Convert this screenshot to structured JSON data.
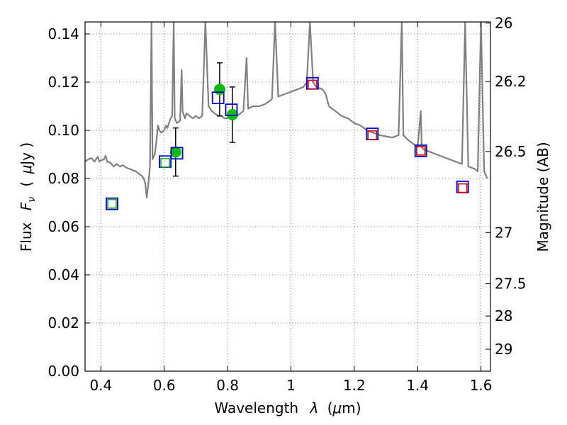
{
  "chart_data": {
    "type": "line",
    "title": "",
    "xlabel": "Wavelength",
    "xlabel_symbol": "λ",
    "xlabel_unit_open": "(",
    "xlabel_unit_mu": "μ",
    "xlabel_unit_rest": "m)",
    "ylabel": "Flux",
    "ylabel_symbol": "F",
    "ylabel_subscript": "ν",
    "ylabel_unit_open": "(",
    "ylabel_unit_mu": "μ",
    "ylabel_unit_rest": "Jy )",
    "y2label": "Magnitude (AB)",
    "xlim": [
      0.35,
      1.63
    ],
    "ylim": [
      0.0,
      0.145
    ],
    "grid": true,
    "x_ticks": [
      {
        "value": 0.4,
        "label": "0.4"
      },
      {
        "value": 0.6,
        "label": "0.6"
      },
      {
        "value": 0.8,
        "label": "0.8"
      },
      {
        "value": 1.0,
        "label": "1"
      },
      {
        "value": 1.2,
        "label": "1.2"
      },
      {
        "value": 1.4,
        "label": "1.4"
      },
      {
        "value": 1.6,
        "label": "1.6"
      }
    ],
    "y_ticks": [
      {
        "value": 0.0,
        "label": "0.00"
      },
      {
        "value": 0.02,
        "label": "0.02"
      },
      {
        "value": 0.04,
        "label": "0.04"
      },
      {
        "value": 0.06,
        "label": "0.06"
      },
      {
        "value": 0.08,
        "label": "0.08"
      },
      {
        "value": 0.1,
        "label": "0.10"
      },
      {
        "value": 0.12,
        "label": "0.12"
      },
      {
        "value": 0.14,
        "label": "0.14"
      }
    ],
    "y2_ticks": [
      {
        "mag": 26,
        "label": "26"
      },
      {
        "mag": 26.2,
        "label": "26.2"
      },
      {
        "mag": 26.5,
        "label": "26.5"
      },
      {
        "mag": 27,
        "label": "27"
      },
      {
        "mag": 27.5,
        "label": "27.5"
      },
      {
        "mag": 28,
        "label": "28"
      },
      {
        "mag": 29,
        "label": "29"
      }
    ],
    "colors": {
      "spectrum": "#808080",
      "observed_fill": "#11bb11",
      "error_bar": "#000000",
      "box_blue": "#0000cc",
      "box_green": "#22aa22",
      "box_red": "#dd0000",
      "grid": "#555555"
    },
    "series": [
      {
        "name": "model spectrum",
        "kind": "line",
        "points": [
          [
            0.35,
            0.087
          ],
          [
            0.36,
            0.088
          ],
          [
            0.37,
            0.0885
          ],
          [
            0.38,
            0.087
          ],
          [
            0.385,
            0.088
          ],
          [
            0.39,
            0.089
          ],
          [
            0.395,
            0.087
          ],
          [
            0.4,
            0.0875
          ],
          [
            0.41,
            0.088
          ],
          [
            0.415,
            0.0895
          ],
          [
            0.42,
            0.087
          ],
          [
            0.43,
            0.0865
          ],
          [
            0.44,
            0.085
          ],
          [
            0.45,
            0.086
          ],
          [
            0.46,
            0.085
          ],
          [
            0.47,
            0.0855
          ],
          [
            0.48,
            0.0845
          ],
          [
            0.49,
            0.084
          ],
          [
            0.5,
            0.0835
          ],
          [
            0.51,
            0.083
          ],
          [
            0.52,
            0.082
          ],
          [
            0.53,
            0.081
          ],
          [
            0.535,
            0.08
          ],
          [
            0.54,
            0.078
          ],
          [
            0.545,
            0.072
          ],
          [
            0.55,
            0.078
          ],
          [
            0.555,
            0.085
          ],
          [
            0.56,
            0.145
          ],
          [
            0.563,
            0.088
          ],
          [
            0.57,
            0.09
          ],
          [
            0.575,
            0.095
          ],
          [
            0.58,
            0.102
          ],
          [
            0.585,
            0.1
          ],
          [
            0.59,
            0.099
          ],
          [
            0.6,
            0.1
          ],
          [
            0.605,
            0.102
          ],
          [
            0.61,
            0.101
          ],
          [
            0.615,
            0.103
          ],
          [
            0.62,
            0.105
          ],
          [
            0.625,
            0.106
          ],
          [
            0.63,
            0.145
          ],
          [
            0.633,
            0.105
          ],
          [
            0.64,
            0.103
          ],
          [
            0.65,
            0.104
          ],
          [
            0.655,
            0.125
          ],
          [
            0.658,
            0.108
          ],
          [
            0.665,
            0.105
          ],
          [
            0.67,
            0.107
          ],
          [
            0.68,
            0.106
          ],
          [
            0.69,
            0.105
          ],
          [
            0.7,
            0.106
          ],
          [
            0.71,
            0.105
          ],
          [
            0.72,
            0.106
          ],
          [
            0.73,
            0.145
          ],
          [
            0.74,
            0.11
          ],
          [
            0.75,
            0.108
          ],
          [
            0.76,
            0.107
          ],
          [
            0.77,
            0.106
          ],
          [
            0.78,
            0.106
          ],
          [
            0.79,
            0.105
          ],
          [
            0.8,
            0.105
          ],
          [
            0.81,
            0.106
          ],
          [
            0.82,
            0.105
          ],
          [
            0.83,
            0.106
          ],
          [
            0.84,
            0.107
          ],
          [
            0.85,
            0.108
          ],
          [
            0.86,
            0.13
          ],
          [
            0.865,
            0.109
          ],
          [
            0.88,
            0.11
          ],
          [
            0.9,
            0.11
          ],
          [
            0.92,
            0.111
          ],
          [
            0.94,
            0.113
          ],
          [
            0.95,
            0.145
          ],
          [
            0.96,
            0.114
          ],
          [
            0.98,
            0.115
          ],
          [
            1.0,
            0.116
          ],
          [
            1.02,
            0.117
          ],
          [
            1.04,
            0.118
          ],
          [
            1.05,
            0.12
          ],
          [
            1.06,
            0.145
          ],
          [
            1.07,
            0.12
          ],
          [
            1.08,
            0.118
          ],
          [
            1.1,
            0.117
          ],
          [
            1.11,
            0.115
          ],
          [
            1.12,
            0.11
          ],
          [
            1.14,
            0.108
          ],
          [
            1.16,
            0.106
          ],
          [
            1.18,
            0.105
          ],
          [
            1.2,
            0.103
          ],
          [
            1.22,
            0.102
          ],
          [
            1.24,
            0.1
          ],
          [
            1.26,
            0.099
          ],
          [
            1.28,
            0.098
          ],
          [
            1.3,
            0.0975
          ],
          [
            1.32,
            0.097
          ],
          [
            1.34,
            0.098
          ],
          [
            1.35,
            0.145
          ],
          [
            1.355,
            0.098
          ],
          [
            1.37,
            0.096
          ],
          [
            1.39,
            0.094
          ],
          [
            1.4,
            0.093
          ],
          [
            1.41,
            0.108
          ],
          [
            1.413,
            0.093
          ],
          [
            1.42,
            0.092
          ],
          [
            1.44,
            0.091
          ],
          [
            1.46,
            0.09
          ],
          [
            1.48,
            0.089
          ],
          [
            1.5,
            0.088
          ],
          [
            1.52,
            0.087
          ],
          [
            1.54,
            0.086
          ],
          [
            1.55,
            0.145
          ],
          [
            1.56,
            0.085
          ],
          [
            1.58,
            0.084
          ],
          [
            1.59,
            0.083
          ],
          [
            1.6,
            0.145
          ],
          [
            1.61,
            0.083
          ],
          [
            1.62,
            0.08
          ]
        ]
      },
      {
        "name": "observed photometry",
        "kind": "scatter_errorbar",
        "points": [
          {
            "x": 0.636,
            "y": 0.091,
            "err": 0.01
          },
          {
            "x": 0.775,
            "y": 0.117,
            "err": 0.011
          },
          {
            "x": 0.815,
            "y": 0.1065,
            "err": 0.0115
          }
        ]
      },
      {
        "name": "model photometry (blue)",
        "kind": "square",
        "points": [
          {
            "x": 0.435,
            "y": 0.0695
          },
          {
            "x": 0.603,
            "y": 0.087
          },
          {
            "x": 0.64,
            "y": 0.0905
          },
          {
            "x": 0.77,
            "y": 0.1135
          },
          {
            "x": 0.812,
            "y": 0.1085
          },
          {
            "x": 1.068,
            "y": 0.1195
          },
          {
            "x": 1.257,
            "y": 0.0985
          },
          {
            "x": 1.41,
            "y": 0.0915
          },
          {
            "x": 1.542,
            "y": 0.0765
          }
        ]
      },
      {
        "name": "model photometry (green)",
        "kind": "square_inner",
        "points": [
          {
            "x": 0.435,
            "y": 0.0695
          },
          {
            "x": 0.603,
            "y": 0.0865
          }
        ]
      },
      {
        "name": "model photometry (red)",
        "kind": "square_inner",
        "points": [
          {
            "x": 1.068,
            "y": 0.119
          },
          {
            "x": 1.257,
            "y": 0.098
          },
          {
            "x": 1.41,
            "y": 0.0915
          },
          {
            "x": 1.542,
            "y": 0.076
          }
        ]
      }
    ]
  }
}
